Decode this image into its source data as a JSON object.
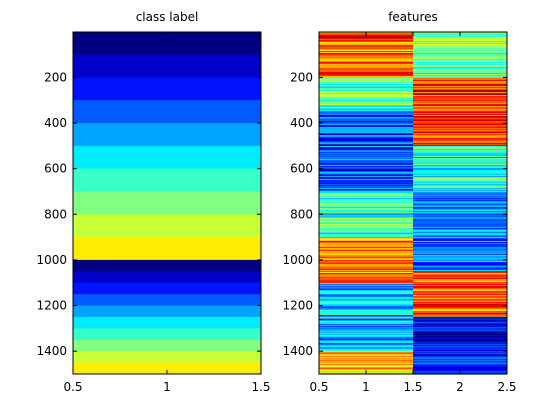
{
  "chart_data": [
    {
      "type": "heatmap",
      "title": "class label",
      "colormap": "jet",
      "clim": [
        1,
        15
      ],
      "xlim": [
        0.5,
        1.5
      ],
      "ylim": [
        1,
        1500
      ],
      "y_reversed": true,
      "xticks": [
        "0.5",
        "1",
        "1.5"
      ],
      "yticks": [
        "200",
        "400",
        "600",
        "800",
        "1000",
        "1200",
        "1400"
      ],
      "bands": [
        {
          "start": 1,
          "end": 100,
          "value": 1
        },
        {
          "start": 100,
          "end": 200,
          "value": 2
        },
        {
          "start": 200,
          "end": 300,
          "value": 3
        },
        {
          "start": 300,
          "end": 400,
          "value": 4
        },
        {
          "start": 400,
          "end": 500,
          "value": 5
        },
        {
          "start": 500,
          "end": 600,
          "value": 6
        },
        {
          "start": 600,
          "end": 700,
          "value": 7
        },
        {
          "start": 700,
          "end": 800,
          "value": 8
        },
        {
          "start": 800,
          "end": 900,
          "value": 9
        },
        {
          "start": 900,
          "end": 1000,
          "value": 10
        },
        {
          "start": 1000,
          "end": 1050,
          "value": 1
        },
        {
          "start": 1050,
          "end": 1100,
          "value": 2
        },
        {
          "start": 1100,
          "end": 1150,
          "value": 3
        },
        {
          "start": 1150,
          "end": 1200,
          "value": 4
        },
        {
          "start": 1200,
          "end": 1250,
          "value": 5
        },
        {
          "start": 1250,
          "end": 1300,
          "value": 6
        },
        {
          "start": 1300,
          "end": 1350,
          "value": 7
        },
        {
          "start": 1350,
          "end": 1400,
          "value": 8
        },
        {
          "start": 1400,
          "end": 1450,
          "value": 9
        },
        {
          "start": 1450,
          "end": 1500,
          "value": 10
        }
      ]
    },
    {
      "type": "heatmap",
      "title": "features",
      "colormap": "jet",
      "clim": [
        0,
        1
      ],
      "xlim": [
        0.5,
        2.5
      ],
      "ylim": [
        1,
        1500
      ],
      "y_reversed": true,
      "xticks": [
        "0.5",
        "1",
        "1.5",
        "2",
        "2.5"
      ],
      "yticks": [
        "200",
        "400",
        "600",
        "800",
        "1000",
        "1200",
        "1400"
      ],
      "columns": [
        {
          "column": 1,
          "segments": [
            {
              "start": 1,
              "end": 200,
              "value": 0.78
            },
            {
              "start": 200,
              "end": 350,
              "value": 0.45
            },
            {
              "start": 350,
              "end": 700,
              "value": 0.2
            },
            {
              "start": 700,
              "end": 900,
              "value": 0.42
            },
            {
              "start": 900,
              "end": 1100,
              "value": 0.75
            },
            {
              "start": 1100,
              "end": 1400,
              "value": 0.3
            },
            {
              "start": 1400,
              "end": 1500,
              "value": 0.7
            }
          ]
        },
        {
          "column": 2,
          "segments": [
            {
              "start": 1,
              "end": 200,
              "value": 0.48
            },
            {
              "start": 200,
              "end": 500,
              "value": 0.82
            },
            {
              "start": 500,
              "end": 700,
              "value": 0.4
            },
            {
              "start": 700,
              "end": 1050,
              "value": 0.25
            },
            {
              "start": 1050,
              "end": 1250,
              "value": 0.78
            },
            {
              "start": 1250,
              "end": 1500,
              "value": 0.15
            }
          ]
        }
      ]
    }
  ]
}
